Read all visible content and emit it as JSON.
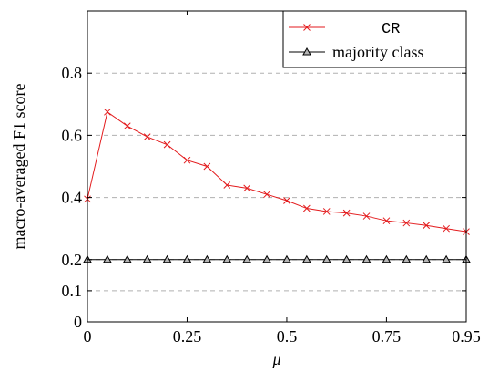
{
  "chart_data": {
    "type": "line",
    "xlabel": "μ",
    "ylabel": "macro-averaged F1 score",
    "xlim": [
      0,
      0.95
    ],
    "ylim": [
      0,
      1.0
    ],
    "y_scale_note": "",
    "xticks": [
      0,
      0.25,
      0.5,
      0.75,
      0.95
    ],
    "xtick_labels": [
      "0",
      "0.25",
      "0.5",
      "0.75",
      "0.95"
    ],
    "yticks": [
      0,
      0.1,
      0.2,
      0.4,
      0.6,
      0.8
    ],
    "ytick_labels": [
      "0",
      "0.1",
      "0.2",
      "0.4",
      "0.6",
      "0.8"
    ],
    "grid_y": true,
    "legend_position": "top-right",
    "series": [
      {
        "name": "CR",
        "color": "#e31a1c",
        "marker": "x",
        "x": [
          0,
          0.05,
          0.1,
          0.15,
          0.2,
          0.25,
          0.3,
          0.35,
          0.4,
          0.45,
          0.5,
          0.55,
          0.6,
          0.65,
          0.7,
          0.75,
          0.8,
          0.85,
          0.9,
          0.95
        ],
        "values": [
          0.395,
          0.675,
          0.63,
          0.595,
          0.57,
          0.52,
          0.5,
          0.44,
          0.43,
          0.41,
          0.39,
          0.365,
          0.355,
          0.35,
          0.34,
          0.325,
          0.318,
          0.31,
          0.3,
          0.29
        ]
      },
      {
        "name": "majority class",
        "color": "#000000",
        "marker": "triangle",
        "x": [
          0,
          0.05,
          0.1,
          0.15,
          0.2,
          0.25,
          0.3,
          0.35,
          0.4,
          0.45,
          0.5,
          0.55,
          0.6,
          0.65,
          0.7,
          0.75,
          0.8,
          0.85,
          0.9,
          0.95
        ],
        "values": [
          0.2,
          0.2,
          0.2,
          0.2,
          0.2,
          0.2,
          0.2,
          0.2,
          0.2,
          0.2,
          0.2,
          0.2,
          0.2,
          0.2,
          0.2,
          0.2,
          0.2,
          0.2,
          0.2,
          0.2
        ]
      }
    ]
  }
}
